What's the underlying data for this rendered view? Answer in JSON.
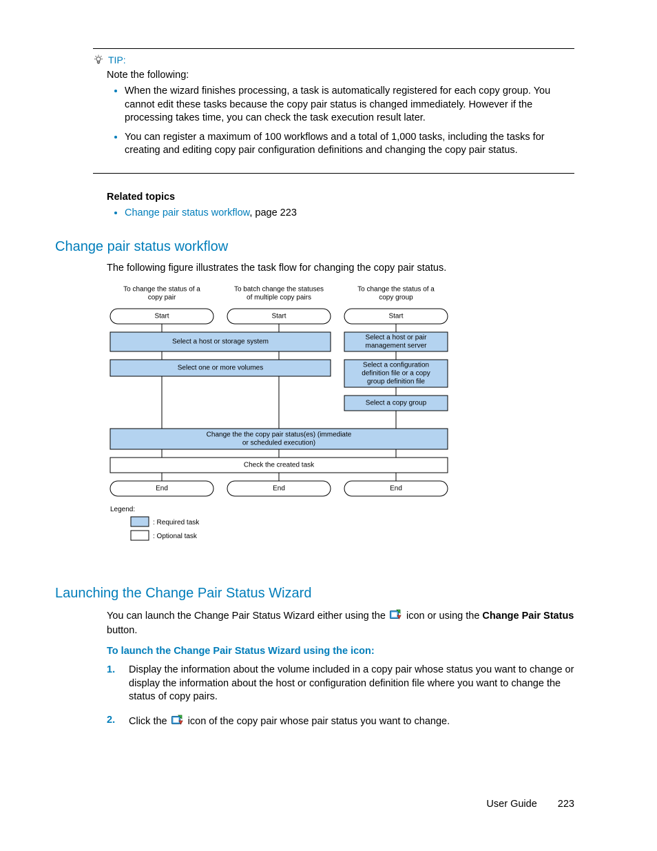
{
  "tip": {
    "label": "TIP:",
    "note": "Note the following:",
    "items": [
      "When the wizard finishes processing, a task is automatically registered for each copy group. You cannot edit these tasks because the copy pair status is changed immediately. However if the processing takes time, you can check the task execution result later.",
      "You can register a maximum of 100 workflows and a total of 1,000 tasks, including the tasks for creating and editing copy pair configuration definitions and changing the copy pair status."
    ]
  },
  "related": {
    "title": "Related topics",
    "link_text": "Change pair status workflow",
    "page_ref": ", page 223"
  },
  "section1": {
    "heading": "Change pair status workflow",
    "intro": "The following figure illustrates the task flow for changing the copy pair status."
  },
  "flowchart": {
    "col_headers": [
      "To change the status of a copy pair",
      "To batch change the statuses of multiple copy pairs",
      "To change the status of a copy group"
    ],
    "start": "Start",
    "end": "End",
    "step_host_storage": "Select a host or storage system",
    "step_volumes": "Select one or more volumes",
    "step_host_pair": "Select a host or pair management server",
    "step_config": "Select a configuration definition file or a copy group definition file",
    "step_copy_group": "Select a copy group",
    "step_change": "Change the the copy pair status(es) (immediate or scheduled execution)",
    "step_check": "Check the created task",
    "legend_title": "Legend:",
    "legend_required": ": Required task",
    "legend_optional": ": Optional task",
    "colors": {
      "required_fill": "#b4d3f0",
      "optional_fill": "#ffffff",
      "border": "#000000",
      "text": "#000000",
      "bg": "#ffffff"
    },
    "font_size": 10,
    "header_font_size": 10
  },
  "section2": {
    "heading": "Launching the Change Pair Status Wizard",
    "para_pre": "You can launch the Change Pair Status Wizard either using the ",
    "para_mid": " icon or using the ",
    "para_bold": "Change Pair Status",
    "para_end": " button.",
    "subhead": "To launch the Change Pair Status Wizard using the icon:",
    "steps": [
      "Display the information about the volume included in a copy pair whose status you want to change or display the information about the host or configuration definition file where you want to change the status of copy pairs.",
      {
        "pre": "Click the ",
        "post": " icon of the copy pair whose pair status you want to change."
      }
    ]
  },
  "footer": {
    "label": "User Guide",
    "page": "223"
  }
}
